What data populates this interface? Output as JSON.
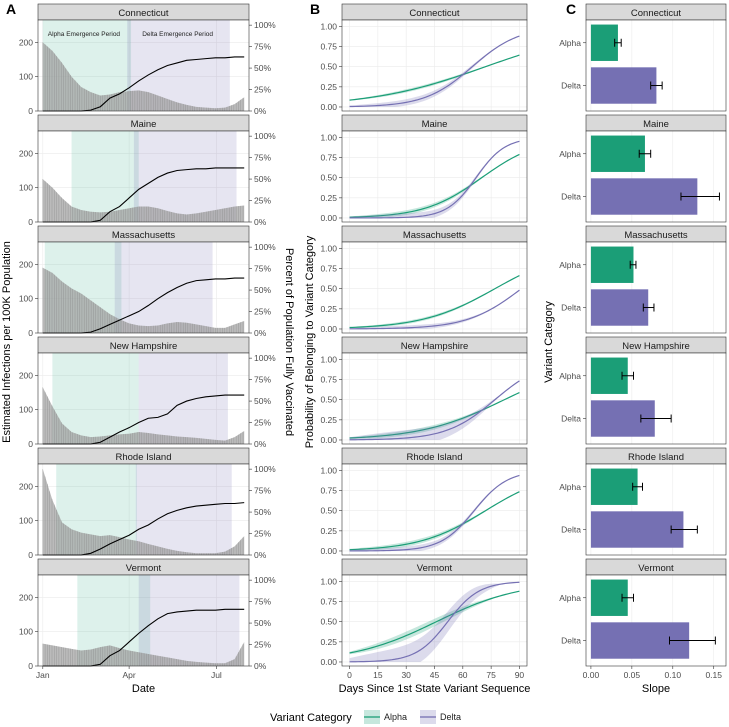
{
  "panel_letters": [
    "A",
    "B",
    "C"
  ],
  "colors": {
    "alpha": "#1b9e77",
    "delta": "#7570b3",
    "alpha_band": "#dcefe6",
    "delta_band": "#e3e0f0",
    "area_fill": "#9e9e9e",
    "strip": "#d9d9d9",
    "grid": "#ebebeb",
    "panel_border": "#333333"
  },
  "states": [
    "Connecticut",
    "Maine",
    "Massachusetts",
    "New Hampshire",
    "Rhode Island",
    "Vermont"
  ],
  "chart_data": [
    {
      "panel": "A",
      "type": "area",
      "xlabel": "Date",
      "ylabel": "Estimated Infections per 100K Population",
      "y2label": "Percent of Population Fully Vaccinated",
      "x_ticks": [
        "Jan",
        "Apr",
        "Jul"
      ],
      "x_tick_days": [
        0,
        90,
        181
      ],
      "x_range_days": [
        -5,
        215
      ],
      "ylim": [
        0,
        265
      ],
      "y_ticks": [
        0,
        100,
        200
      ],
      "y2lim": [
        0,
        1.06
      ],
      "y2_ticks": [
        "0%",
        "25%",
        "50%",
        "75%",
        "100%"
      ],
      "period_labels": [
        "Alpha Emergence Period",
        "Delta Emergence Period"
      ],
      "days": [
        0,
        10,
        20,
        30,
        40,
        50,
        60,
        70,
        80,
        90,
        100,
        110,
        120,
        130,
        140,
        150,
        160,
        170,
        180,
        190,
        200,
        210
      ],
      "series": [
        {
          "state": "Connecticut",
          "alpha_period": [
            0,
            92
          ],
          "delta_period": [
            88,
            195
          ],
          "infections": [
            200,
            175,
            140,
            100,
            70,
            55,
            45,
            48,
            55,
            58,
            60,
            55,
            45,
            35,
            25,
            18,
            12,
            10,
            8,
            10,
            20,
            40
          ],
          "vax_start": 40,
          "vaccinated": [
            0,
            0,
            0,
            0,
            0,
            0.01,
            0.05,
            0.15,
            0.2,
            0.27,
            0.35,
            0.42,
            0.48,
            0.53,
            0.56,
            0.59,
            0.6,
            0.61,
            0.62,
            0.62,
            0.63,
            0.63
          ]
        },
        {
          "state": "Maine",
          "alpha_period": [
            30,
            100
          ],
          "delta_period": [
            95,
            202
          ],
          "infections": [
            125,
            100,
            70,
            45,
            35,
            30,
            28,
            30,
            35,
            40,
            45,
            45,
            40,
            32,
            25,
            22,
            25,
            30,
            35,
            40,
            45,
            48
          ],
          "vax_start": 45,
          "vaccinated": [
            0,
            0,
            0,
            0,
            0,
            0,
            0.02,
            0.12,
            0.18,
            0.28,
            0.38,
            0.45,
            0.52,
            0.57,
            0.6,
            0.61,
            0.62,
            0.62,
            0.63,
            0.63,
            0.63,
            0.63
          ]
        },
        {
          "state": "Massachusetts",
          "alpha_period": [
            2,
            82
          ],
          "delta_period": [
            75,
            177
          ],
          "infections": [
            190,
            175,
            150,
            130,
            115,
            95,
            75,
            55,
            40,
            28,
            22,
            20,
            22,
            28,
            32,
            30,
            25,
            20,
            15,
            15,
            25,
            35
          ],
          "vax_start": 50,
          "vaccinated": [
            0,
            0,
            0,
            0,
            0,
            0.01,
            0.05,
            0.1,
            0.15,
            0.2,
            0.25,
            0.32,
            0.4,
            0.47,
            0.53,
            0.58,
            0.61,
            0.62,
            0.63,
            0.63,
            0.64,
            0.64
          ]
        },
        {
          "state": "New Hampshire",
          "alpha_period": [
            10,
            100
          ],
          "delta_period": [
            100,
            193
          ],
          "infections": [
            165,
            110,
            60,
            35,
            25,
            20,
            22,
            25,
            28,
            30,
            35,
            32,
            28,
            25,
            22,
            20,
            18,
            15,
            12,
            10,
            20,
            38
          ],
          "vax_start": 55,
          "vaccinated": [
            0,
            0,
            0,
            0,
            0,
            0,
            0.02,
            0.08,
            0.14,
            0.19,
            0.25,
            0.3,
            0.31,
            0.35,
            0.45,
            0.5,
            0.53,
            0.55,
            0.56,
            0.57,
            0.57,
            0.57
          ]
        },
        {
          "state": "Rhode Island",
          "alpha_period": [
            14,
            98
          ],
          "delta_period": [
            97,
            197
          ],
          "infections": [
            250,
            160,
            95,
            75,
            65,
            60,
            55,
            58,
            52,
            45,
            40,
            32,
            25,
            18,
            12,
            8,
            5,
            5,
            5,
            10,
            25,
            55
          ],
          "vax_start": 45,
          "vaccinated": [
            0,
            0,
            0,
            0,
            0,
            0.02,
            0.07,
            0.13,
            0.18,
            0.23,
            0.3,
            0.35,
            0.42,
            0.48,
            0.52,
            0.55,
            0.57,
            0.58,
            0.59,
            0.6,
            0.6,
            0.61
          ]
        },
        {
          "state": "Vermont",
          "alpha_period": [
            36,
            112
          ],
          "delta_period": [
            100,
            205
          ],
          "infections": [
            65,
            60,
            55,
            50,
            45,
            48,
            55,
            60,
            52,
            45,
            40,
            35,
            30,
            25,
            20,
            15,
            12,
            10,
            8,
            8,
            20,
            70
          ],
          "vax_start": 55,
          "vaccinated": [
            0,
            0,
            0,
            0,
            0,
            0,
            0.02,
            0.12,
            0.18,
            0.28,
            0.38,
            0.47,
            0.55,
            0.61,
            0.63,
            0.64,
            0.65,
            0.65,
            0.65,
            0.66,
            0.66,
            0.66
          ]
        }
      ]
    },
    {
      "panel": "B",
      "type": "line",
      "xlabel": "Days Since 1st State Variant Sequence",
      "ylabel": "Probability of Belonging to Variant Category",
      "xlim": [
        0,
        90
      ],
      "ylim": [
        0,
        1.05
      ],
      "x_ticks": [
        0,
        15,
        30,
        45,
        60,
        75,
        90
      ],
      "y_ticks": [
        "0.00",
        "0.25",
        "0.50",
        "0.75",
        "1.00"
      ],
      "series": [
        {
          "state": "Connecticut",
          "alpha": {
            "k": 0.033,
            "x0": 72,
            "ci": 0.02
          },
          "delta": {
            "k": 0.08,
            "x0": 65,
            "ci": 0.04
          }
        },
        {
          "state": "Maine",
          "alpha": {
            "k": 0.066,
            "x0": 70,
            "ci": 0.03
          },
          "delta": {
            "k": 0.13,
            "x0": 67,
            "ci": 0.05
          }
        },
        {
          "state": "Massachusetts",
          "alpha": {
            "k": 0.052,
            "x0": 77,
            "ci": 0.02
          },
          "delta": {
            "k": 0.07,
            "x0": 91,
            "ci": 0.03
          }
        },
        {
          "state": "New Hampshire",
          "alpha": {
            "k": 0.045,
            "x0": 82,
            "ci": 0.03
          },
          "delta": {
            "k": 0.078,
            "x0": 77,
            "ci": 0.1
          }
        },
        {
          "state": "Rhode Island",
          "alpha": {
            "k": 0.057,
            "x0": 72,
            "ci": 0.03
          },
          "delta": {
            "k": 0.113,
            "x0": 66,
            "ci": 0.04
          }
        },
        {
          "state": "Vermont",
          "alpha": {
            "k": 0.045,
            "x0": 46,
            "ci": 0.05
          },
          "delta": {
            "k": 0.12,
            "x0": 52,
            "ci": 0.15
          }
        }
      ]
    },
    {
      "panel": "C",
      "type": "bar",
      "orientation": "horizontal",
      "xlabel": "Slope",
      "ylabel": "Variant Category",
      "xlim": [
        0,
        0.165
      ],
      "x_ticks": [
        "0.00",
        "0.05",
        "0.10",
        "0.15"
      ],
      "x_tick_values": [
        0,
        0.05,
        0.1,
        0.15
      ],
      "categories": [
        "Alpha",
        "Delta"
      ],
      "series": [
        {
          "state": "Connecticut",
          "values": [
            0.033,
            0.08
          ],
          "errors": [
            [
              0.029,
              0.037
            ],
            [
              0.073,
              0.087
            ]
          ]
        },
        {
          "state": "Maine",
          "values": [
            0.066,
            0.13
          ],
          "errors": [
            [
              0.059,
              0.073
            ],
            [
              0.11,
              0.157
            ]
          ]
        },
        {
          "state": "Massachusetts",
          "values": [
            0.052,
            0.07
          ],
          "errors": [
            [
              0.048,
              0.055
            ],
            [
              0.064,
              0.077
            ]
          ]
        },
        {
          "state": "New Hampshire",
          "values": [
            0.045,
            0.078
          ],
          "errors": [
            [
              0.038,
              0.052
            ],
            [
              0.061,
              0.098
            ]
          ]
        },
        {
          "state": "Rhode Island",
          "values": [
            0.057,
            0.113
          ],
          "errors": [
            [
              0.051,
              0.063
            ],
            [
              0.098,
              0.13
            ]
          ]
        },
        {
          "state": "Vermont",
          "values": [
            0.045,
            0.12
          ],
          "errors": [
            [
              0.038,
              0.052
            ],
            [
              0.096,
              0.152
            ]
          ]
        }
      ]
    }
  ],
  "legend": {
    "title": "Variant Category",
    "items": [
      "Alpha",
      "Delta"
    ]
  }
}
